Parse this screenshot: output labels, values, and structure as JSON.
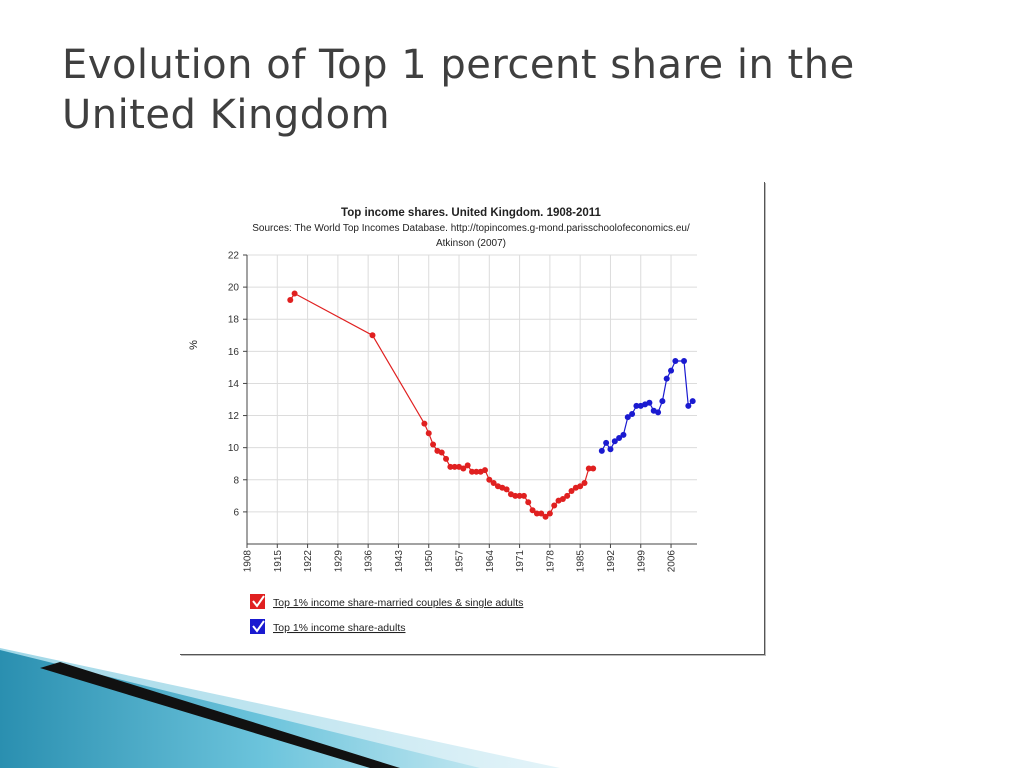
{
  "slide": {
    "title_line1": "Evolution of Top 1 percent share in the",
    "title_line2": "United Kingdom"
  },
  "chart_data": {
    "type": "line",
    "title": "Top income shares. United Kingdom. 1908-2011",
    "subtitle_line1": "Sources: The World Top Incomes Database. http://topincomes.g-mond.parisschoolofeconomics.eu/",
    "subtitle_line2": "Atkinson (2007)",
    "xlabel": "",
    "ylabel": "%",
    "xlim": [
      1908,
      2012
    ],
    "ylim": [
      4,
      22
    ],
    "x_ticks": [
      "1908",
      "1915",
      "1922",
      "1929",
      "1936",
      "1943",
      "1950",
      "1957",
      "1964",
      "1971",
      "1978",
      "1985",
      "1992",
      "1999",
      "2006"
    ],
    "y_ticks": [
      6,
      8,
      10,
      12,
      14,
      16,
      18,
      20,
      22
    ],
    "grid": true,
    "legend_position": "bottom-left",
    "series": [
      {
        "name": "Top 1% income share-married couples & single adults",
        "color": "#e02020",
        "points": [
          [
            1918,
            19.2
          ],
          [
            1919,
            19.6
          ],
          [
            1937,
            17.0
          ],
          [
            1949,
            11.5
          ],
          [
            1950,
            10.9
          ],
          [
            1951,
            10.2
          ],
          [
            1952,
            9.8
          ],
          [
            1953,
            9.7
          ],
          [
            1954,
            9.3
          ],
          [
            1955,
            8.8
          ],
          [
            1956,
            8.8
          ],
          [
            1957,
            8.8
          ],
          [
            1958,
            8.7
          ],
          [
            1959,
            8.9
          ],
          [
            1960,
            8.5
          ],
          [
            1961,
            8.5
          ],
          [
            1962,
            8.5
          ],
          [
            1963,
            8.6
          ],
          [
            1964,
            8.0
          ],
          [
            1965,
            7.8
          ],
          [
            1966,
            7.6
          ],
          [
            1967,
            7.5
          ],
          [
            1968,
            7.4
          ],
          [
            1969,
            7.1
          ],
          [
            1970,
            7.0
          ],
          [
            1971,
            7.0
          ],
          [
            1972,
            7.0
          ],
          [
            1973,
            6.6
          ],
          [
            1974,
            6.1
          ],
          [
            1975,
            5.9
          ],
          [
            1976,
            5.9
          ],
          [
            1977,
            5.7
          ],
          [
            1978,
            5.9
          ],
          [
            1979,
            6.4
          ],
          [
            1980,
            6.7
          ],
          [
            1981,
            6.8
          ],
          [
            1982,
            7.0
          ],
          [
            1983,
            7.3
          ],
          [
            1984,
            7.5
          ],
          [
            1985,
            7.6
          ],
          [
            1986,
            7.8
          ],
          [
            1987,
            8.7
          ],
          [
            1988,
            8.7
          ]
        ]
      },
      {
        "name": "Top 1% income share-adults",
        "color": "#1a1ad0",
        "points": [
          [
            1990,
            9.8
          ],
          [
            1991,
            10.3
          ],
          [
            1992,
            9.9
          ],
          [
            1993,
            10.4
          ],
          [
            1994,
            10.6
          ],
          [
            1995,
            10.8
          ],
          [
            1996,
            11.9
          ],
          [
            1997,
            12.1
          ],
          [
            1998,
            12.6
          ],
          [
            1999,
            12.6
          ],
          [
            2000,
            12.7
          ],
          [
            2001,
            12.8
          ],
          [
            2002,
            12.3
          ],
          [
            2003,
            12.2
          ],
          [
            2004,
            12.9
          ],
          [
            2005,
            14.3
          ],
          [
            2006,
            14.8
          ],
          [
            2007,
            15.4
          ],
          [
            2009,
            15.4
          ],
          [
            2010,
            12.6
          ],
          [
            2011,
            12.9
          ]
        ]
      }
    ]
  }
}
